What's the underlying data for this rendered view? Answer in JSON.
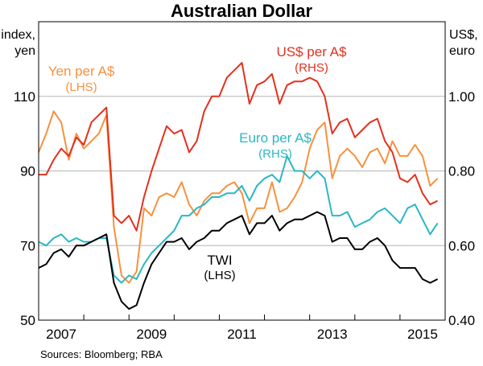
{
  "chart_data": {
    "type": "line",
    "title": "Australian Dollar",
    "left_axis_label": [
      "index,",
      "yen"
    ],
    "right_axis_label": [
      "US$,",
      "euro"
    ],
    "xlim": [
      "2007-01",
      "2016-01"
    ],
    "x_tick_labels": [
      "2007",
      "2009",
      "2011",
      "2013",
      "2015"
    ],
    "left_ylim": [
      50,
      130
    ],
    "right_ylim": [
      0.4,
      1.2
    ],
    "left_ticks": [
      "50",
      "70",
      "90",
      "110"
    ],
    "right_ticks": [
      "0.40",
      "0.60",
      "0.80",
      "1.00"
    ],
    "grid": true,
    "source": "Sources:   Bloomberg; RBA",
    "x": [
      "2007-01",
      "2007-03",
      "2007-05",
      "2007-07",
      "2007-09",
      "2007-11",
      "2008-01",
      "2008-03",
      "2008-05",
      "2008-07",
      "2008-09",
      "2008-11",
      "2009-01",
      "2009-03",
      "2009-05",
      "2009-07",
      "2009-09",
      "2009-11",
      "2010-01",
      "2010-03",
      "2010-05",
      "2010-07",
      "2010-09",
      "2010-11",
      "2011-01",
      "2011-03",
      "2011-05",
      "2011-07",
      "2011-09",
      "2011-11",
      "2012-01",
      "2012-03",
      "2012-05",
      "2012-07",
      "2012-09",
      "2012-11",
      "2013-01",
      "2013-03",
      "2013-05",
      "2013-07",
      "2013-09",
      "2013-11",
      "2014-01",
      "2014-03",
      "2014-05",
      "2014-07",
      "2014-09",
      "2014-11",
      "2015-01",
      "2015-03",
      "2015-05",
      "2015-07",
      "2015-09",
      "2015-11"
    ],
    "series": [
      {
        "name": "US$ per A$",
        "axis_note": "(RHS)",
        "axis": "right",
        "color": "#e4301e",
        "values": [
          0.79,
          0.79,
          0.83,
          0.86,
          0.84,
          0.89,
          0.87,
          0.93,
          0.95,
          0.97,
          0.68,
          0.66,
          0.68,
          0.64,
          0.73,
          0.8,
          0.86,
          0.92,
          0.9,
          0.91,
          0.85,
          0.88,
          0.96,
          1.0,
          1.0,
          1.05,
          1.07,
          1.09,
          0.98,
          1.03,
          1.04,
          1.06,
          0.98,
          1.03,
          1.04,
          1.04,
          1.05,
          1.04,
          1.0,
          0.9,
          0.93,
          0.94,
          0.89,
          0.91,
          0.93,
          0.94,
          0.88,
          0.85,
          0.78,
          0.77,
          0.79,
          0.74,
          0.71,
          0.72
        ]
      },
      {
        "name": "Yen per A$",
        "axis_note": "(LHS)",
        "axis": "left",
        "color": "#f7913d",
        "values": [
          95,
          100,
          106,
          103,
          93,
          100,
          96,
          98,
          100,
          105,
          75,
          62,
          60,
          63,
          80,
          78,
          83,
          84,
          83,
          87,
          81,
          78,
          82,
          84,
          84,
          86,
          87,
          84,
          76,
          80,
          80,
          87,
          79,
          80,
          83,
          87,
          96,
          101,
          103,
          88,
          94,
          96,
          94,
          91,
          95,
          96,
          92,
          98,
          94,
          94,
          97,
          94,
          86,
          88
        ]
      },
      {
        "name": "Euro per A$",
        "axis_note": "(RHS)",
        "axis": "right",
        "color": "#2ab7c4",
        "values": [
          0.61,
          0.6,
          0.62,
          0.63,
          0.61,
          0.62,
          0.61,
          0.61,
          0.62,
          0.62,
          0.52,
          0.5,
          0.52,
          0.51,
          0.55,
          0.58,
          0.6,
          0.62,
          0.64,
          0.68,
          0.68,
          0.7,
          0.71,
          0.73,
          0.73,
          0.74,
          0.74,
          0.76,
          0.72,
          0.76,
          0.78,
          0.79,
          0.77,
          0.84,
          0.8,
          0.8,
          0.78,
          0.8,
          0.78,
          0.68,
          0.68,
          0.69,
          0.65,
          0.66,
          0.67,
          0.69,
          0.7,
          0.68,
          0.66,
          0.7,
          0.71,
          0.67,
          0.63,
          0.66
        ]
      },
      {
        "name": "TWI",
        "axis_note": "(LHS)",
        "axis": "left",
        "color": "#000000",
        "values": [
          64,
          65,
          68,
          69,
          67,
          70,
          70,
          71,
          72,
          73,
          60,
          55,
          53,
          54,
          60,
          65,
          68,
          71,
          71,
          72,
          69,
          71,
          72,
          74,
          74,
          76,
          77,
          78,
          73,
          76,
          76,
          78,
          74,
          76,
          77,
          77,
          78,
          79,
          78,
          71,
          72,
          72,
          69,
          69,
          71,
          72,
          70,
          66,
          64,
          64,
          64,
          61,
          60,
          61
        ]
      }
    ]
  }
}
